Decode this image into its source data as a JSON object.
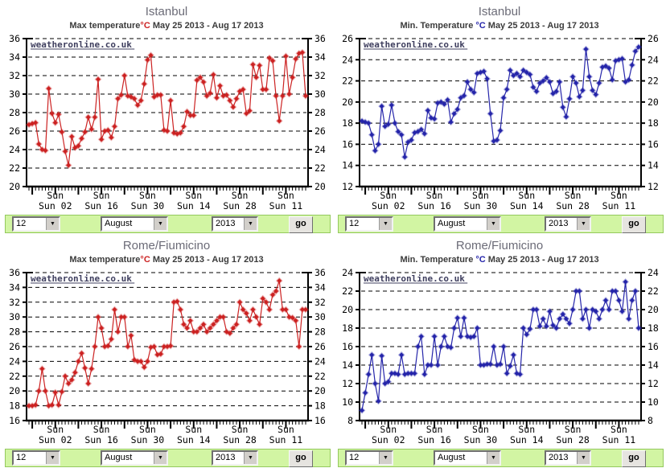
{
  "controls": {
    "day_value": "12",
    "month_value": "August",
    "year_value": "2013",
    "go_label": "go",
    "dropdown_arrow": "▼"
  },
  "chart_data": [
    {
      "type": "line",
      "city": "Istanbul",
      "measure": "Max temperature",
      "degree": "°C",
      "date_range": " May 25 2013 - Aug 17 2013",
      "watermark": "weatheronline.co.uk",
      "series_color": "#cc2222",
      "ylim": [
        20,
        36
      ],
      "ytick_step": 2,
      "grid": "dashed",
      "x_tick_line1": "Sun",
      "x_tick_labels": [
        "Sun 02",
        "Sun 16",
        "Sun 30",
        "Sun 14",
        "Sun 28",
        "Sun 11"
      ],
      "labeled_day_indices": [
        8,
        22,
        36,
        50,
        64,
        78
      ],
      "sunday_day_indices": [
        1,
        8,
        15,
        22,
        29,
        36,
        43,
        50,
        57,
        64,
        71,
        78
      ],
      "values": [
        26.7,
        26.8,
        26.9,
        24.6,
        24.0,
        23.9,
        30.6,
        27.9,
        26.9,
        27.8,
        25.9,
        23.8,
        22.3,
        25.4,
        24.2,
        24.4,
        25.2,
        25.9,
        27.5,
        26.2,
        27.5,
        31.6,
        25.1,
        26.0,
        26.1,
        25.3,
        26.5,
        29.5,
        29.9,
        32.0,
        29.8,
        29.7,
        29.5,
        28.8,
        29.3,
        31.1,
        33.7,
        34.2,
        29.7,
        29.9,
        29.9,
        26.1,
        26.0,
        29.3,
        25.8,
        25.7,
        25.8,
        26.5,
        28.1,
        27.7,
        27.7,
        31.5,
        31.8,
        31.3,
        29.8,
        30.1,
        32.1,
        29.6,
        30.9,
        29.8,
        29.9,
        29.3,
        28.6,
        29.5,
        30.3,
        30.5,
        27.9,
        28.2,
        33.2,
        31.8,
        33.1,
        30.5,
        30.5,
        33.9,
        33.6,
        29.8,
        27.1,
        29.8,
        34.1,
        30.0,
        31.8,
        33.8,
        34.4,
        34.5,
        29.8
      ]
    },
    {
      "type": "line",
      "city": "Istanbul",
      "measure": "Min. Temperature ",
      "degree": "°C",
      "date_range": " May 25 2013 - Aug 17 2013",
      "watermark": "weatheronline.co.uk",
      "series_color": "#2525aa",
      "ylim": [
        12,
        26
      ],
      "ytick_step": 2,
      "grid": "dashed",
      "x_tick_line1": "Sun",
      "x_tick_labels": [
        "Sun 02",
        "Sun 16",
        "Sun 30",
        "Sun 14",
        "Sun 28",
        "Sun 11"
      ],
      "labeled_day_indices": [
        8,
        22,
        36,
        50,
        64,
        78
      ],
      "sunday_day_indices": [
        1,
        8,
        15,
        22,
        29,
        36,
        43,
        50,
        57,
        64,
        71,
        78
      ],
      "values": [
        18.2,
        18.1,
        18.0,
        16.9,
        15.4,
        16.0,
        19.6,
        17.7,
        17.9,
        19.7,
        18.0,
        17.2,
        16.9,
        14.8,
        16.2,
        16.4,
        17.1,
        17.2,
        17.4,
        17.0,
        19.2,
        18.5,
        18.4,
        19.9,
        20.0,
        19.8,
        20.2,
        18.1,
        18.9,
        19.3,
        20.4,
        20.6,
        21.9,
        21.2,
        20.9,
        22.7,
        22.8,
        22.9,
        22.2,
        18.9,
        16.3,
        16.4,
        17.3,
        20.4,
        21.2,
        23.0,
        22.5,
        22.7,
        22.4,
        23.0,
        22.8,
        22.6,
        21.4,
        21.0,
        21.8,
        22.0,
        22.3,
        21.9,
        20.8,
        21.0,
        21.9,
        19.5,
        18.6,
        20.3,
        22.4,
        21.8,
        20.5,
        21.1,
        25.0,
        22.4,
        21.1,
        20.7,
        21.8,
        23.3,
        23.4,
        23.2,
        22.1,
        23.9,
        24.0,
        24.1,
        21.9,
        22.1,
        23.5,
        24.8,
        25.2
      ]
    },
    {
      "type": "line",
      "city": "Rome/Fiumicino",
      "measure": "Max temperature",
      "degree": "°C",
      "date_range": " May 25 2013 - Aug 17 2013",
      "watermark": "weatheronline.co.uk",
      "series_color": "#cc2222",
      "ylim": [
        16,
        36
      ],
      "ytick_step": 2,
      "grid": "dashed",
      "x_tick_line1": "Sun",
      "x_tick_labels": [
        "Sun 02",
        "Sun 16",
        "Sun 30",
        "Sun 14",
        "Sun 28",
        "Sun 11"
      ],
      "labeled_day_indices": [
        8,
        22,
        36,
        50,
        64,
        78
      ],
      "sunday_day_indices": [
        1,
        8,
        15,
        22,
        29,
        36,
        43,
        50,
        57,
        64,
        71,
        78
      ],
      "values": [
        18.0,
        18.0,
        18.1,
        20.0,
        23.0,
        20.0,
        18.0,
        18.1,
        19.8,
        18.1,
        19.9,
        22.0,
        21.0,
        21.5,
        22.5,
        24.0,
        25.1,
        23.1,
        21.0,
        23.0,
        26.0,
        30.0,
        28.5,
        26.0,
        26.1,
        27.0,
        31.0,
        28.0,
        30.0,
        30.0,
        26.0,
        27.5,
        24.2,
        24.0,
        24.0,
        23.2,
        24.0,
        25.9,
        26.0,
        24.9,
        25.0,
        26.0,
        26.0,
        26.1,
        32.0,
        32.1,
        31.0,
        29.0,
        28.5,
        29.5,
        28.0,
        28.0,
        28.5,
        29.0,
        28.0,
        28.5,
        29.0,
        29.5,
        30.0,
        30.0,
        28.0,
        27.8,
        28.5,
        29.0,
        32.0,
        31.0,
        30.5,
        29.5,
        31.0,
        30.0,
        29.0,
        32.5,
        32.0,
        31.0,
        33.0,
        33.5,
        34.9,
        31.0,
        31.0,
        30.0,
        29.9,
        29.5,
        26.0,
        31.0,
        31.0
      ]
    },
    {
      "type": "line",
      "city": "Rome/Fiumicino",
      "measure": "Min. Temperature ",
      "degree": "°C",
      "date_range": " May 25 2013 - Aug 17 2013",
      "watermark": "weatheronline.co.uk",
      "series_color": "#2525aa",
      "ylim": [
        8,
        24
      ],
      "ytick_step": 2,
      "grid": "dashed",
      "x_tick_line1": "Sun",
      "x_tick_labels": [
        "Sun 02",
        "Sun 16",
        "Sun 30",
        "Sun 14",
        "Sun 28",
        "Sun 11"
      ],
      "labeled_day_indices": [
        8,
        22,
        36,
        50,
        64,
        78
      ],
      "sunday_day_indices": [
        1,
        8,
        15,
        22,
        29,
        36,
        43,
        50,
        57,
        64,
        71,
        78
      ],
      "values": [
        9.1,
        11.0,
        13.0,
        15.1,
        12.0,
        10.1,
        15.0,
        12.0,
        12.2,
        13.1,
        13.1,
        13.0,
        15.1,
        13.0,
        13.1,
        13.1,
        13.1,
        16.0,
        17.1,
        13.0,
        14.0,
        14.0,
        17.1,
        14.0,
        16.0,
        17.1,
        16.0,
        15.9,
        18.0,
        19.1,
        17.1,
        19.1,
        17.1,
        17.0,
        17.1,
        18.0,
        14.0,
        14.0,
        14.1,
        14.1,
        16.0,
        14.0,
        14.1,
        16.0,
        13.1,
        13.9,
        15.1,
        13.1,
        13.0,
        18.0,
        17.3,
        17.9,
        20.0,
        20.0,
        18.2,
        19.0,
        18.2,
        19.8,
        18.3,
        18.0,
        19.0,
        19.5,
        19.0,
        18.5,
        20.0,
        22.0,
        22.0,
        19.0,
        20.0,
        18.0,
        20.0,
        19.8,
        19.0,
        20.0,
        21.0,
        20.0,
        22.0,
        22.0,
        21.0,
        19.8,
        23.0,
        19.0,
        21.0,
        22.0,
        18.0
      ]
    }
  ]
}
